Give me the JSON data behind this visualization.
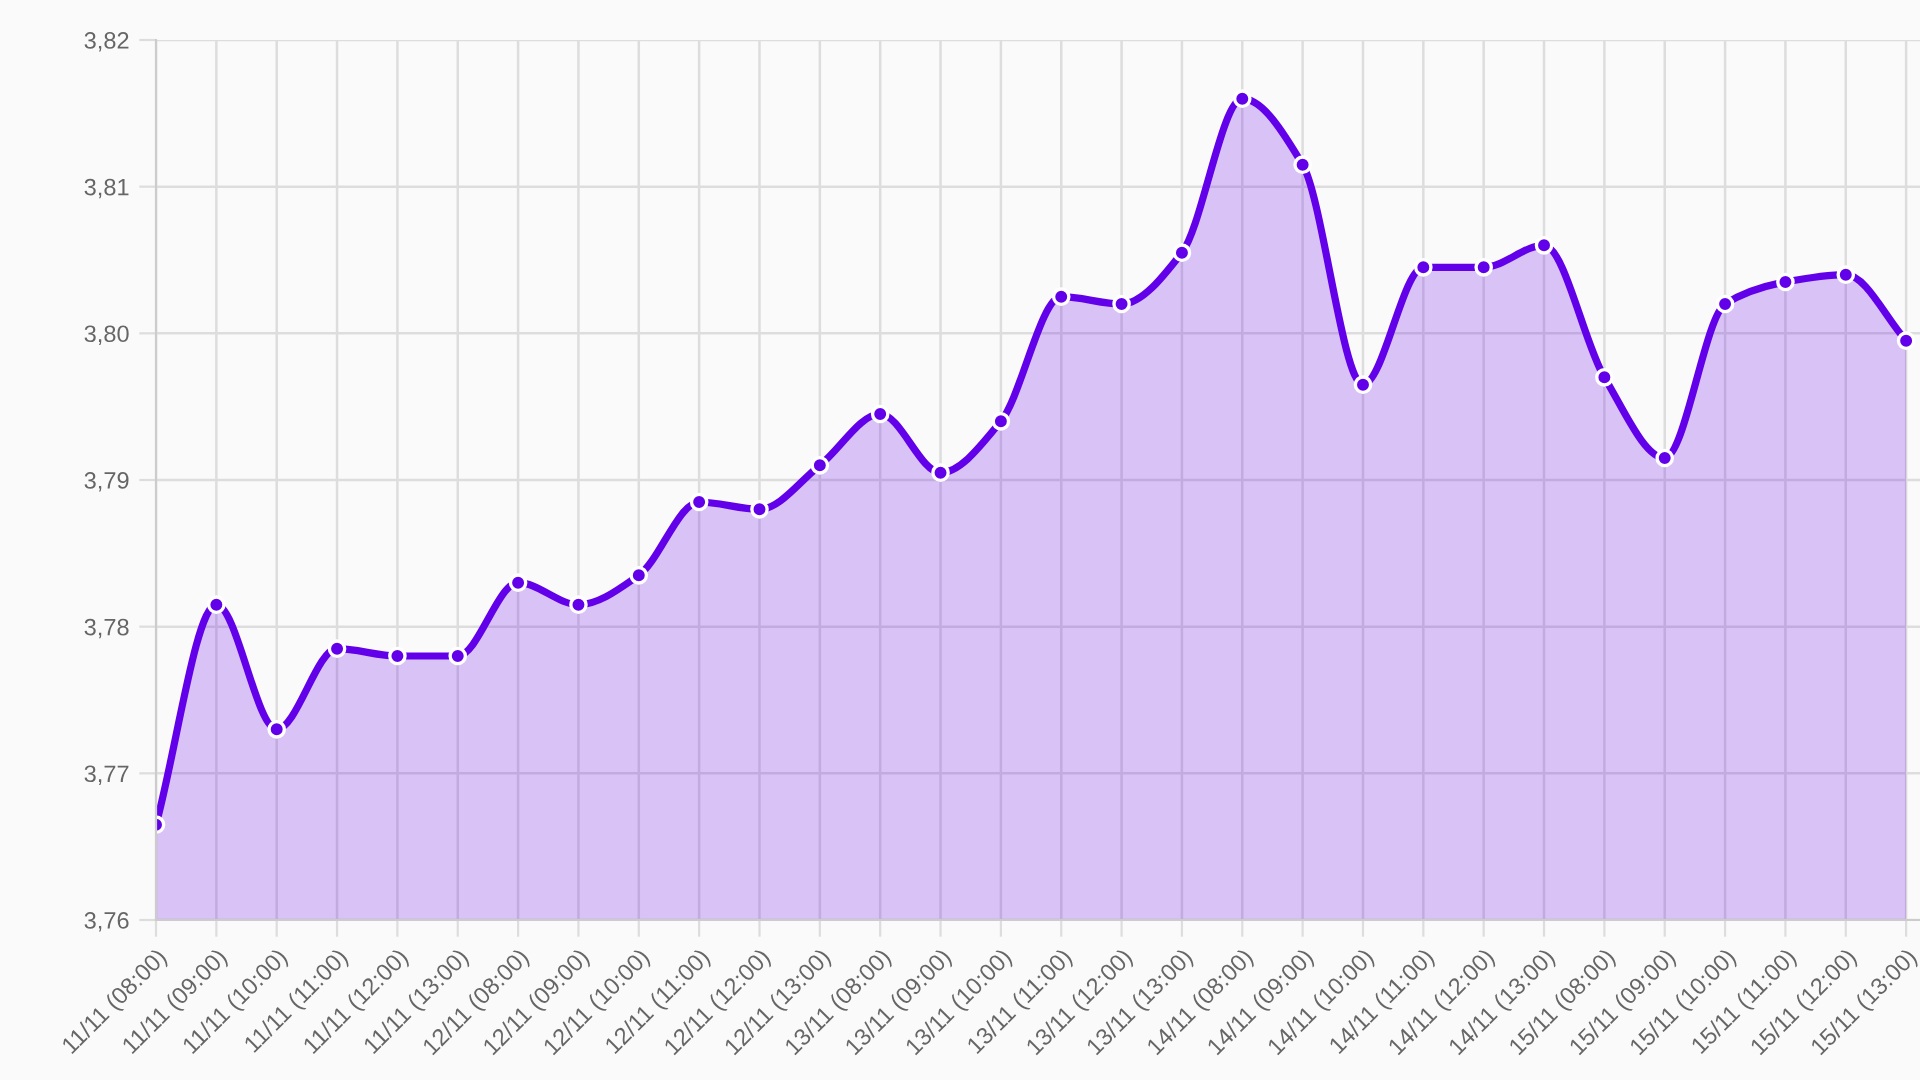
{
  "chart_data": {
    "type": "area",
    "categories": [
      "11/11 (08:00)",
      "11/11 (09:00)",
      "11/11 (10:00)",
      "11/11 (11:00)",
      "11/11 (12:00)",
      "11/11 (13:00)",
      "12/11 (08:00)",
      "12/11 (09:00)",
      "12/11 (10:00)",
      "12/11 (11:00)",
      "12/11 (12:00)",
      "12/11 (13:00)",
      "13/11 (08:00)",
      "13/11 (09:00)",
      "13/11 (10:00)",
      "13/11 (11:00)",
      "13/11 (12:00)",
      "13/11 (13:00)",
      "14/11 (08:00)",
      "14/11 (09:00)",
      "14/11 (10:00)",
      "14/11 (11:00)",
      "14/11 (12:00)",
      "14/11 (13:00)",
      "15/11 (08:00)",
      "15/11 (09:00)",
      "15/11 (10:00)",
      "15/11 (11:00)",
      "15/11 (12:00)",
      "15/11 (13:00)"
    ],
    "series": [
      {
        "color": "#6200ea",
        "values": [
          3.7665,
          3.7815,
          3.773,
          3.7785,
          3.778,
          3.778,
          3.783,
          3.7815,
          3.7835,
          3.7885,
          3.788,
          3.791,
          3.7945,
          3.7905,
          3.794,
          3.8025,
          3.802,
          3.8055,
          3.816,
          3.8115,
          3.7965,
          3.8045,
          3.8045,
          3.806,
          3.797,
          3.7915,
          3.802,
          3.8035,
          3.804,
          3.7995
        ]
      }
    ],
    "ylim": [
      3.76,
      3.82
    ],
    "yticks": [
      {
        "value": 3.76,
        "label": "3,76"
      },
      {
        "value": 3.77,
        "label": "3,77"
      },
      {
        "value": 3.78,
        "label": "3,78"
      },
      {
        "value": 3.79,
        "label": "3,79"
      },
      {
        "value": 3.8,
        "label": "3,80"
      },
      {
        "value": 3.81,
        "label": "3,81"
      },
      {
        "value": 3.82,
        "label": "3,82"
      }
    ],
    "grid": true,
    "marker": "circle",
    "line_style": "solid"
  }
}
